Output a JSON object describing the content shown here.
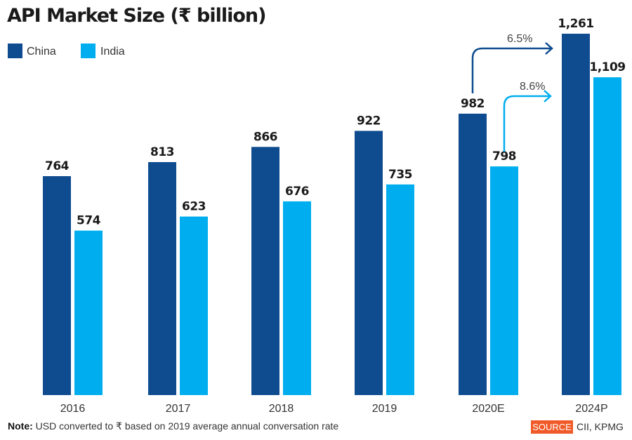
{
  "chart_data": {
    "type": "bar",
    "title": "API Market Size (₹ billion)",
    "categories": [
      "2016",
      "2017",
      "2018",
      "2019",
      "2020E",
      "2024P"
    ],
    "series": [
      {
        "name": "China",
        "color": "#0f4c8f",
        "values": [
          764,
          813,
          866,
          922,
          982,
          1261
        ],
        "labels": [
          "764",
          "813",
          "866",
          "922",
          "982",
          "1,261"
        ]
      },
      {
        "name": "India",
        "color": "#00aeef",
        "values": [
          574,
          623,
          676,
          735,
          798,
          1109
        ],
        "labels": [
          "574",
          "623",
          "676",
          "735",
          "798",
          "1,109"
        ]
      }
    ],
    "annotations": [
      {
        "series": "China",
        "from": "2020E",
        "to": "2024P",
        "text": "6.5%"
      },
      {
        "series": "India",
        "from": "2020E",
        "to": "2024P",
        "text": "8.6%"
      }
    ],
    "ylim": [
      0,
      1300
    ],
    "grid": false,
    "legend": "top-left",
    "xlabel": "",
    "ylabel": ""
  },
  "footer": {
    "note_label": "Note:",
    "note_text": "USD converted to ₹ based on 2019 average annual conversation rate",
    "source_label": "SOURCE",
    "source_text": "CII, KPMG",
    "source_color": "#f05a28"
  }
}
